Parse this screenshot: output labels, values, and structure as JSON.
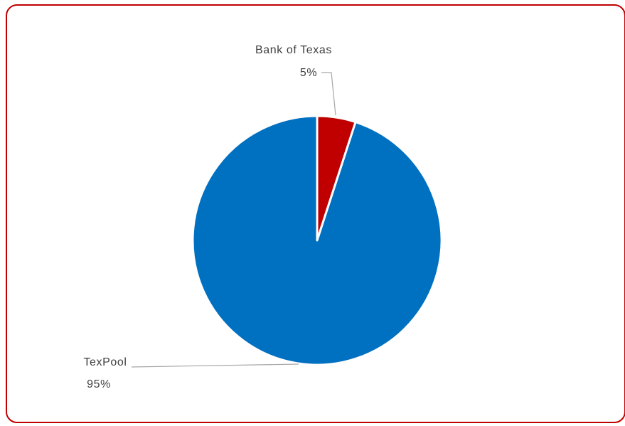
{
  "chart_data": {
    "type": "pie",
    "slices": [
      {
        "label": "Bank of Texas",
        "value": 5,
        "value_label": "5%",
        "color": "#c00000"
      },
      {
        "label": "TexPool",
        "value": 95,
        "value_label": "95%",
        "color": "#0070c0"
      }
    ],
    "start_angle": "12 o'clock",
    "direction": "clockwise"
  },
  "frame": {
    "border_color": "#c00000",
    "background": "#ffffff"
  }
}
